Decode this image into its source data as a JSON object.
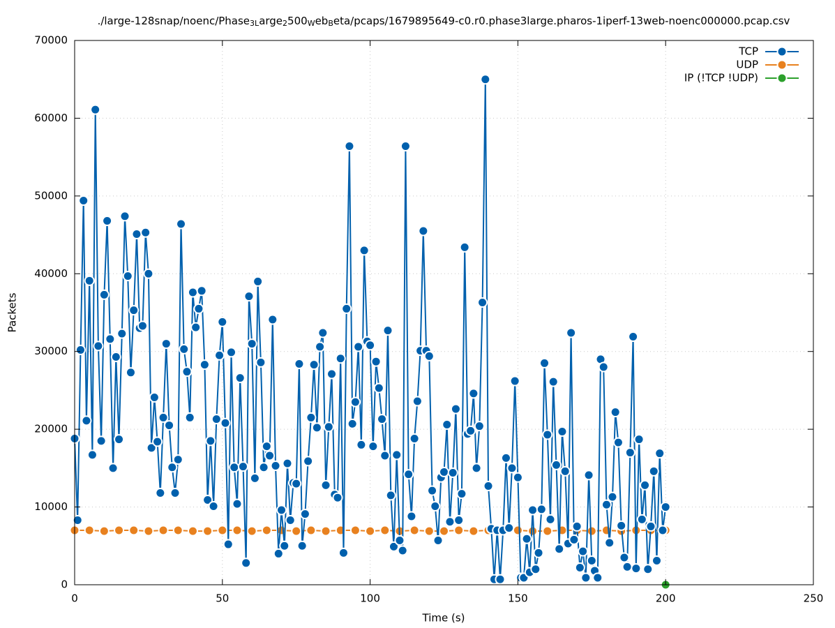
{
  "chart_data": {
    "type": "line",
    "title": [
      "./large-128snap/noenc/Phase",
      "3L",
      "arge",
      "2",
      "500",
      "W",
      "eb",
      "B",
      "eta/pcaps/1679895649-c0.r0.phase3large.pharos-1iperf-13web-noenc000000.pcap.csv"
    ],
    "xlabel": "Time (s)",
    "ylabel": "Packets",
    "xlim": [
      0,
      250
    ],
    "xticks": [
      0,
      50,
      100,
      150,
      200,
      250
    ],
    "ylim": [
      0,
      70000
    ],
    "yticks": [
      0,
      10000,
      20000,
      30000,
      40000,
      50000,
      60000,
      70000
    ],
    "grid": true,
    "legend": "upper right",
    "series": [
      {
        "name": "UDP",
        "color": "#e8811f",
        "x": [
          0,
          5,
          10,
          15,
          20,
          25,
          30,
          35,
          40,
          45,
          50,
          55,
          60,
          65,
          70,
          75,
          80,
          85,
          90,
          95,
          100,
          105,
          110,
          115,
          120,
          125,
          130,
          135,
          140,
          145,
          150,
          155,
          160,
          165,
          170,
          175,
          180,
          185,
          190,
          195,
          200
        ],
        "values": [
          7000,
          7000,
          6900,
          7000,
          7000,
          6900,
          7000,
          7000,
          6900,
          6900,
          7000,
          7000,
          6900,
          7000,
          7000,
          6900,
          7000,
          6900,
          7000,
          7000,
          6900,
          7000,
          6900,
          7000,
          6900,
          6900,
          7000,
          6900,
          7000,
          6900,
          7000,
          6900,
          6900,
          7000,
          7000,
          6900,
          7000,
          6900,
          7000,
          7000,
          7000
        ]
      },
      {
        "name": "TCP",
        "color": "#0060ad",
        "x": [
          0,
          1,
          2,
          3,
          4,
          5,
          6,
          7,
          8,
          9,
          10,
          11,
          12,
          13,
          14,
          15,
          16,
          17,
          18,
          19,
          20,
          21,
          22,
          23,
          24,
          25,
          26,
          27,
          28,
          29,
          30,
          31,
          32,
          33,
          34,
          35,
          36,
          37,
          38,
          39,
          40,
          41,
          42,
          43,
          44,
          45,
          46,
          47,
          48,
          49,
          50,
          51,
          52,
          53,
          54,
          55,
          56,
          57,
          58,
          59,
          60,
          61,
          62,
          63,
          64,
          65,
          66,
          67,
          68,
          69,
          70,
          71,
          72,
          73,
          74,
          75,
          76,
          77,
          78,
          79,
          80,
          81,
          82,
          83,
          84,
          85,
          86,
          87,
          88,
          89,
          90,
          91,
          92,
          93,
          94,
          95,
          96,
          97,
          98,
          99,
          100,
          101,
          102,
          103,
          104,
          105,
          106,
          107,
          108,
          109,
          110,
          111,
          112,
          113,
          114,
          115,
          116,
          117,
          118,
          119,
          120,
          121,
          122,
          123,
          124,
          125,
          126,
          127,
          128,
          129,
          130,
          131,
          132,
          133,
          134,
          135,
          136,
          137,
          138,
          139,
          140,
          141,
          142,
          143,
          144,
          145,
          146,
          147,
          148,
          149,
          150,
          151,
          152,
          153,
          154,
          155,
          156,
          157,
          158,
          159,
          160,
          161,
          162,
          163,
          164,
          165,
          166,
          167,
          168,
          169,
          170,
          171,
          172,
          173,
          174,
          175,
          176,
          177,
          178,
          179,
          180,
          181,
          182,
          183,
          184,
          185,
          186,
          187,
          188,
          189,
          190,
          191,
          192,
          193,
          194,
          195,
          196,
          197,
          198,
          199,
          200
        ],
        "values": [
          18800,
          8300,
          30200,
          49400,
          21100,
          39100,
          16700,
          61100,
          30700,
          18500,
          37300,
          46800,
          31600,
          15000,
          29300,
          18700,
          32300,
          47400,
          39700,
          27300,
          35300,
          45100,
          33000,
          33300,
          45300,
          40000,
          17600,
          24100,
          18400,
          11800,
          21500,
          31000,
          20500,
          15100,
          11800,
          16100,
          46400,
          30300,
          27400,
          21500,
          37600,
          33100,
          35500,
          37800,
          28300,
          10900,
          18500,
          10100,
          21300,
          29500,
          33800,
          20800,
          5200,
          29900,
          15100,
          10400,
          26600,
          15200,
          2800,
          37100,
          31000,
          13700,
          39000,
          28600,
          15100,
          17800,
          16600,
          34100,
          15300,
          4000,
          9600,
          5000,
          15600,
          8300,
          13100,
          13000,
          28400,
          5000,
          9100,
          15900,
          21500,
          28300,
          20200,
          30600,
          32400,
          12800,
          20300,
          27100,
          11600,
          11200,
          29100,
          4100,
          35500,
          56400,
          20700,
          23500,
          30600,
          18000,
          43000,
          31300,
          30800,
          17800,
          28700,
          25300,
          21300,
          16600,
          32700,
          11500,
          4900,
          16700,
          5700,
          4400,
          56400,
          14200,
          8800,
          18800,
          23600,
          30100,
          45500,
          30100,
          29400,
          12100,
          10100,
          5700,
          13800,
          14500,
          20600,
          8100,
          14400,
          22600,
          8300,
          11700,
          43400,
          19400,
          19800,
          24600,
          15000,
          20400,
          36300,
          65000,
          12700,
          7200,
          700,
          7000,
          700,
          7000,
          16300,
          7300,
          15000,
          26200,
          13800,
          900,
          900,
          5900,
          1600,
          9600,
          2000,
          4100,
          9700,
          28500,
          19300,
          8400,
          26100,
          15400,
          4600,
          19700,
          14600,
          5300,
          32400,
          5800,
          7500,
          2200,
          4300,
          900,
          14100,
          3100,
          1800,
          900,
          29000,
          28000,
          10300,
          5400,
          11300,
          22200,
          18300,
          7600,
          3500,
          2300,
          17000,
          31900,
          2100,
          18700,
          8400,
          12800,
          2000,
          7500,
          14600,
          3100,
          16900,
          7000,
          10000
        ]
      },
      {
        "name": "IP (!TCP  !UDP)",
        "color": "#2ca02c",
        "x": [
          200
        ],
        "values": [
          0
        ]
      }
    ]
  }
}
